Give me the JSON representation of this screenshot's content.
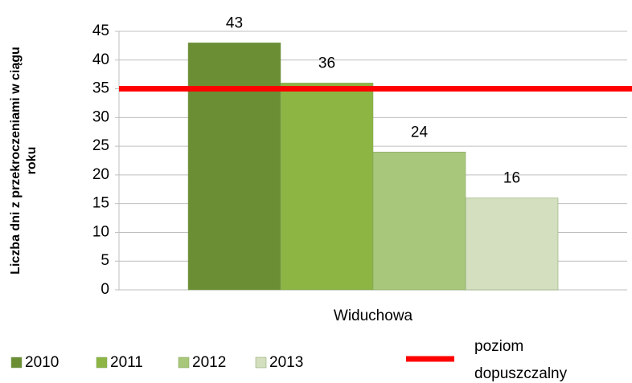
{
  "chart_data": {
    "type": "bar",
    "y_label": "Liczba dni z przekroczeniami w ciągu roku",
    "categories": [
      "Widuchowa"
    ],
    "series": [
      {
        "name": "2010",
        "color": "#6b8e35",
        "values": [
          43
        ]
      },
      {
        "name": "2011",
        "color": "#8db543",
        "values": [
          36
        ]
      },
      {
        "name": "2012",
        "color": "#a9c77a",
        "values": [
          24
        ]
      },
      {
        "name": "2013",
        "color": "#d3dfbf",
        "values": [
          16
        ]
      }
    ],
    "reference_line": {
      "name": "poziom dopuszczalny",
      "value": 35,
      "color": "#ff0000"
    },
    "ylim": [
      0,
      45
    ],
    "yticks": [
      0,
      5,
      10,
      15,
      20,
      25,
      30,
      35,
      40,
      45
    ],
    "grid": true
  }
}
